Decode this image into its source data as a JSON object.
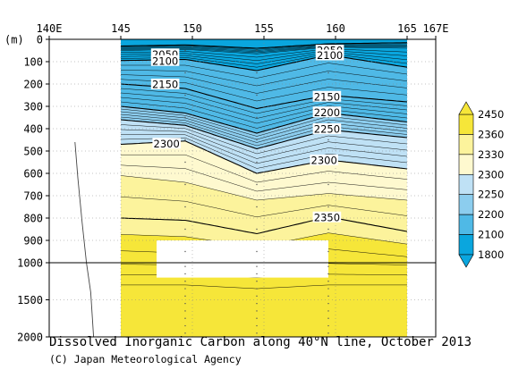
{
  "chart_data": {
    "type": "contour",
    "title": "Dissolved Inorganic Carbon along 40°N line, October 2013",
    "credit": "(C) Japan Meteorological Agency",
    "x_axis": {
      "range": [
        140,
        167
      ],
      "ticks": [
        {
          "value": 140,
          "label": "140E"
        },
        {
          "value": 145,
          "label": "145"
        },
        {
          "value": 150,
          "label": "150"
        },
        {
          "value": 155,
          "label": "155"
        },
        {
          "value": 160,
          "label": "160"
        },
        {
          "value": 165,
          "label": "165"
        },
        {
          "value": 167,
          "label": "167E"
        }
      ]
    },
    "y_axis": {
      "unit_label": "(m)",
      "ticks_upper": [
        0,
        100,
        200,
        300,
        400,
        500,
        600,
        700,
        800,
        900,
        1000
      ],
      "ticks_lower": [
        1500,
        2000
      ],
      "scale_break_depth": 1000,
      "max_depth": 2000
    },
    "colorbar": {
      "levels": [
        1800,
        2100,
        2200,
        2250,
        2300,
        2330,
        2360,
        2450
      ],
      "colors": [
        "#0aa6de",
        "#4fb9e6",
        "#8ccdee",
        "#bfe1f5",
        "#ffffff",
        "#fef9cf",
        "#fcf39c",
        "#f6e639"
      ],
      "band_colors": [
        "#0aa6de",
        "#4fb9e6",
        "#8ccdee",
        "#bfe1f5",
        "#fef9cf",
        "#fcf39c",
        "#f6e639"
      ]
    },
    "contour_labels": [
      {
        "text": "2050",
        "lon": 148.1,
        "depth": 65
      },
      {
        "text": "2050",
        "lon": 159.6,
        "depth": 48
      },
      {
        "text": "2100",
        "lon": 148.1,
        "depth": 95
      },
      {
        "text": "2100",
        "lon": 159.6,
        "depth": 70
      },
      {
        "text": "2150",
        "lon": 148.1,
        "depth": 200
      },
      {
        "text": "2150",
        "lon": 159.4,
        "depth": 255
      },
      {
        "text": "2200",
        "lon": 159.4,
        "depth": 325
      },
      {
        "text": "2250",
        "lon": 159.4,
        "depth": 400
      },
      {
        "text": "2300",
        "lon": 148.2,
        "depth": 465
      },
      {
        "text": "2300",
        "lon": 159.2,
        "depth": 540
      },
      {
        "text": "2350",
        "lon": 159.4,
        "depth": 795
      }
    ]
  }
}
